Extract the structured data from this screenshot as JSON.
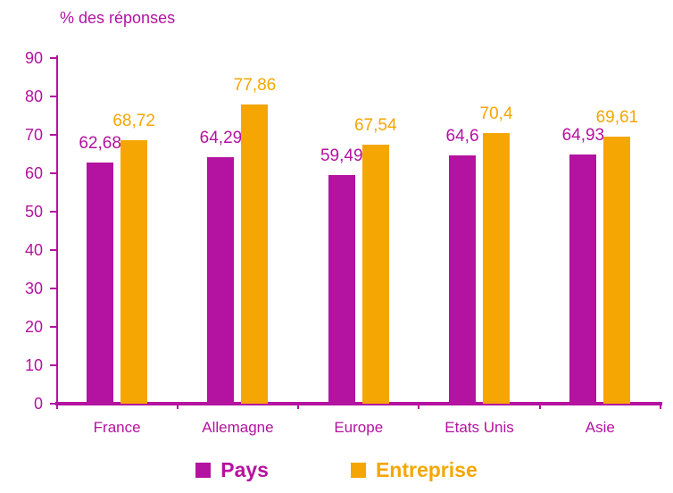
{
  "chart_data": {
    "type": "bar",
    "title": "% des réponses",
    "categories": [
      "France",
      "Allemagne",
      "Europe",
      "Etats Unis",
      "Asie"
    ],
    "series": [
      {
        "name": "Pays",
        "color": "#B412A0",
        "values": [
          62.68,
          64.29,
          59.49,
          64.6,
          64.93
        ],
        "labels": [
          "62,68",
          "64,29",
          "59,49",
          "64,6",
          "64,93"
        ]
      },
      {
        "name": "Entreprise",
        "color": "#F5A603",
        "values": [
          68.72,
          77.86,
          67.54,
          70.4,
          69.61
        ],
        "labels": [
          "68,72",
          "77,86",
          "67,54",
          "70,4",
          "69,61"
        ]
      }
    ],
    "ylim": [
      0,
      90
    ],
    "yticks": [
      0,
      10,
      20,
      30,
      40,
      50,
      60,
      70,
      80,
      90
    ],
    "grid": false,
    "legend_position": "bottom",
    "axis_color": "#B412A0",
    "text_color": "#B412A0"
  }
}
